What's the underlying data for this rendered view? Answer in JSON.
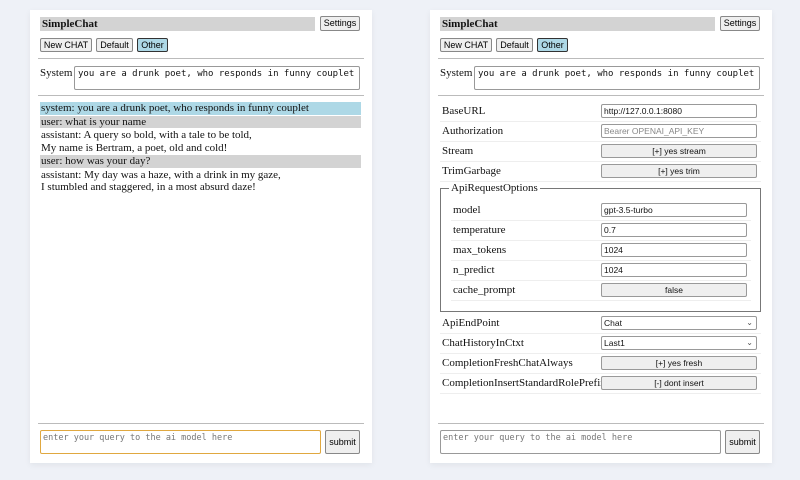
{
  "colors": {
    "background": "#eef1f7",
    "selected_button": "#add8e6",
    "system_message": "#add8e6",
    "user_message": "#d3d3d3",
    "focus_border": "#e0a840"
  },
  "left": {
    "title": "SimpleChat",
    "settings_label": "Settings",
    "session_buttons": [
      "New CHAT",
      "Default",
      "Other"
    ],
    "selected_session": "Other",
    "system_label": "System",
    "system_value": "you are a drunk poet, who responds in funny couplet",
    "messages": [
      {
        "role": "system",
        "lines": [
          "system: you are a drunk poet, who responds in funny couplet"
        ]
      },
      {
        "role": "user",
        "lines": [
          "user: what is your name"
        ]
      },
      {
        "role": "assistant",
        "lines": [
          "assistant: A query so bold, with a tale to be told,",
          "My name is Bertram, a poet, old and cold!"
        ]
      },
      {
        "role": "user",
        "lines": [
          "user: how was your day?"
        ]
      },
      {
        "role": "assistant",
        "lines": [
          "assistant: My day was a haze, with a drink in my gaze,",
          "I stumbled and staggered, in a most absurd daze!"
        ]
      }
    ],
    "query_placeholder": "enter your query to the ai model here",
    "submit_label": "submit"
  },
  "right": {
    "title": "SimpleChat",
    "settings_label": "Settings",
    "session_buttons": [
      "New CHAT",
      "Default",
      "Other"
    ],
    "selected_session": "Other",
    "system_label": "System",
    "system_value": "you are a drunk poet, who responds in funny couplet",
    "settings": {
      "baseurl_label": "BaseURL",
      "baseurl_value": "http://127.0.0.1:8080",
      "auth_label": "Authorization",
      "auth_placeholder": "Bearer OPENAI_API_KEY",
      "stream_label": "Stream",
      "stream_value": "[+] yes stream",
      "trim_label": "TrimGarbage",
      "trim_value": "[+] yes trim",
      "api_options_legend": "ApiRequestOptions",
      "model_label": "model",
      "model_value": "gpt-3.5-turbo",
      "temperature_label": "temperature",
      "temperature_value": "0.7",
      "max_tokens_label": "max_tokens",
      "max_tokens_value": "1024",
      "n_predict_label": "n_predict",
      "n_predict_value": "1024",
      "cache_prompt_label": "cache_prompt",
      "cache_prompt_value": "false",
      "endpoint_label": "ApiEndPoint",
      "endpoint_value": "Chat",
      "history_label": "ChatHistoryInCtxt",
      "history_value": "Last1",
      "fresh_label": "CompletionFreshChatAlways",
      "fresh_value": "[+] yes fresh",
      "prefix_label": "CompletionInsertStandardRolePrefix",
      "prefix_value": "[-] dont insert"
    },
    "query_placeholder": "enter your query to the ai model here",
    "submit_label": "submit"
  }
}
